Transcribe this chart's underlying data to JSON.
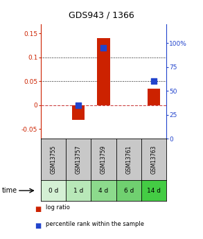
{
  "title": "GDS943 / 1366",
  "samples": [
    "GSM13755",
    "GSM13757",
    "GSM13759",
    "GSM13761",
    "GSM13763"
  ],
  "time_labels": [
    "0 d",
    "1 d",
    "4 d",
    "6 d",
    "14 d"
  ],
  "log_ratio": [
    0.0,
    -0.03,
    0.14,
    0.0,
    0.035
  ],
  "percentile": [
    null,
    25.0,
    85.0,
    null,
    50.0
  ],
  "left_ylim": [
    -0.07,
    0.17
  ],
  "left_yticks": [
    -0.05,
    0,
    0.05,
    0.1,
    0.15
  ],
  "right_ytick_labels": [
    "0",
    "25",
    "50",
    "75",
    "100%"
  ],
  "right_ytick_values": [
    -10,
    15,
    40,
    65,
    90
  ],
  "right_ylim": [
    -10,
    110
  ],
  "bar_color": "#cc2200",
  "dot_color": "#2244cc",
  "zero_line_color": "#cc4444",
  "bg_gsm": "#c8c8c8",
  "time_bg_colors": [
    "#d4f0d4",
    "#b8e8b8",
    "#8cda8c",
    "#70d070",
    "#44cc44"
  ],
  "bar_width": 0.5,
  "dot_size": 30
}
